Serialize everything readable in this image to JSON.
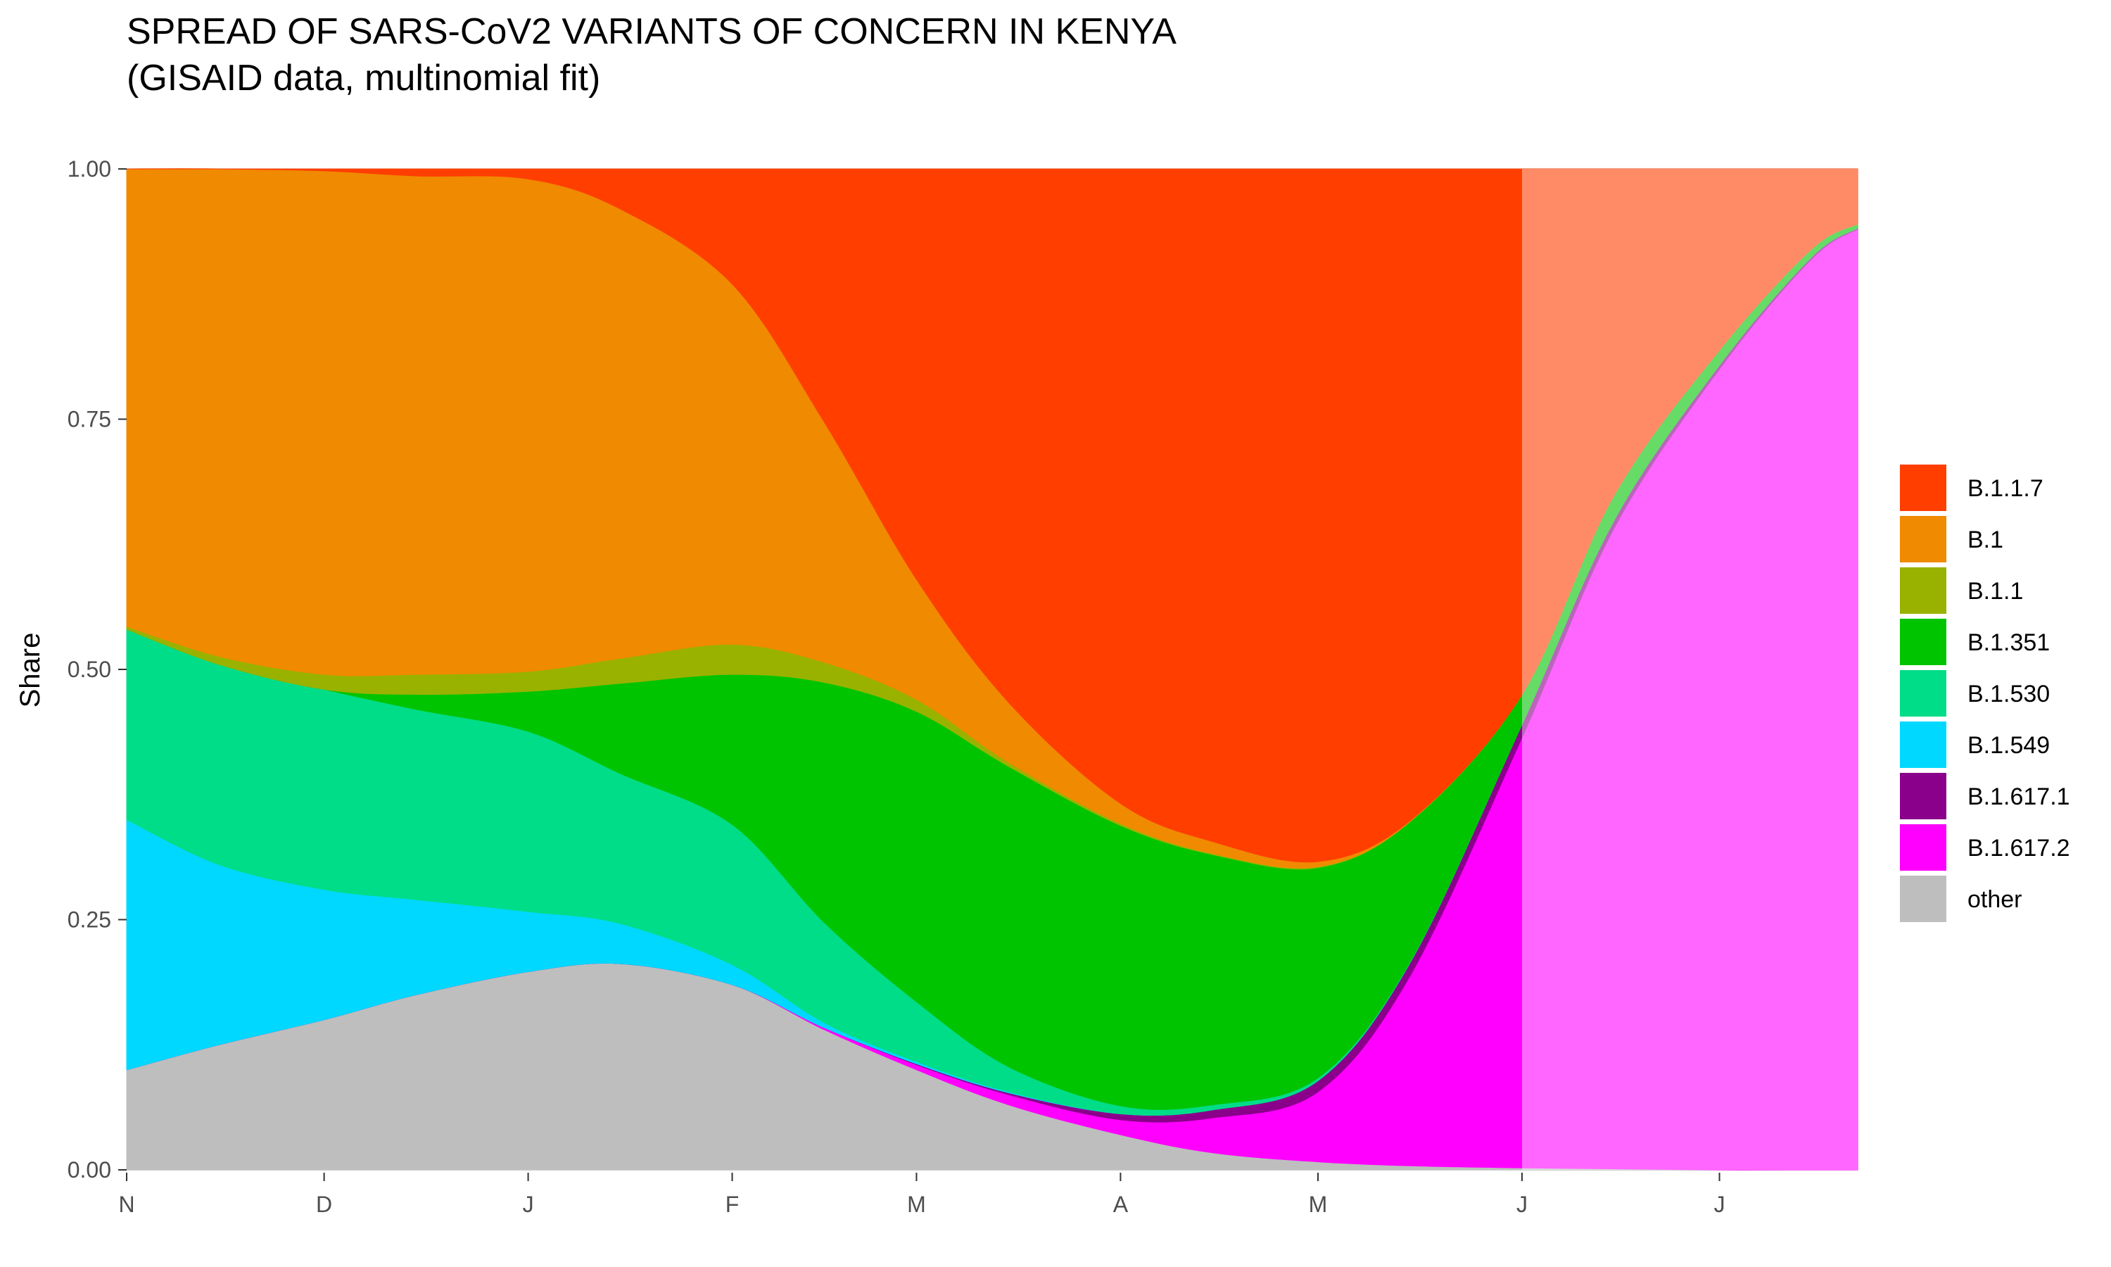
{
  "chart_data": {
    "type": "area",
    "title": "SPREAD OF SARS-CoV2 VARIANTS OF CONCERN IN KENYA",
    "subtitle": "(GISAID data, multinomial fit)",
    "xlabel": "",
    "ylabel": "Share",
    "ylim": [
      0,
      1
    ],
    "yticks": [
      "0.00",
      "0.25",
      "0.50",
      "0.75",
      "1.00"
    ],
    "xlim": [
      "2020-11-01",
      "2021-07-22"
    ],
    "xticks": [
      {
        "date": "2020-11-01",
        "label": "N"
      },
      {
        "date": "2020-12-01",
        "label": "D"
      },
      {
        "date": "2021-01-01",
        "label": "J"
      },
      {
        "date": "2021-02-01",
        "label": "F"
      },
      {
        "date": "2021-03-01",
        "label": "M"
      },
      {
        "date": "2021-04-01",
        "label": "A"
      },
      {
        "date": "2021-05-01",
        "label": "M"
      },
      {
        "date": "2021-06-01",
        "label": "J"
      },
      {
        "date": "2021-07-01",
        "label": "J"
      }
    ],
    "projection_start": "2021-06-01",
    "stacking_order_bottom_to_top": [
      "other",
      "B.1.617.2",
      "B.1.617.1",
      "B.1.549",
      "B.1.530",
      "B.1.351",
      "B.1.1",
      "B.1",
      "B.1.1.7"
    ],
    "x": [
      "2020-11-01",
      "2020-11-15",
      "2020-12-01",
      "2020-12-15",
      "2021-01-01",
      "2021-01-15",
      "2021-02-01",
      "2021-02-15",
      "2021-03-01",
      "2021-03-15",
      "2021-04-01",
      "2021-04-15",
      "2021-05-01",
      "2021-05-15",
      "2021-06-01",
      "2021-06-15",
      "2021-07-01",
      "2021-07-15",
      "2021-07-22"
    ],
    "series": [
      {
        "name": "other",
        "color": "#bebebe",
        "values": [
          0.1,
          0.125,
          0.15,
          0.175,
          0.198,
          0.206,
          0.185,
          0.14,
          0.1,
          0.065,
          0.035,
          0.017,
          0.008,
          0.004,
          0.002,
          0.001,
          0.0,
          0.0,
          0.0
        ]
      },
      {
        "name": "B.1.617.2",
        "color": "#ff00ff",
        "values": [
          0.0,
          0.0,
          0.0,
          0.0,
          0.0,
          0.0,
          0.0,
          0.002,
          0.005,
          0.01,
          0.015,
          0.035,
          0.07,
          0.19,
          0.43,
          0.64,
          0.8,
          0.91,
          0.94
        ]
      },
      {
        "name": "B.1.617.1",
        "color": "#8b008b",
        "values": [
          0.0,
          0.0,
          0.0,
          0.0,
          0.0,
          0.0,
          0.0,
          0.0,
          0.001,
          0.002,
          0.006,
          0.008,
          0.011,
          0.013,
          0.013,
          0.008,
          0.004,
          0.002,
          0.001
        ]
      },
      {
        "name": "B.1.549",
        "color": "#00d8ff",
        "values": [
          0.25,
          0.18,
          0.13,
          0.095,
          0.06,
          0.04,
          0.02,
          0.005,
          0.002,
          0.001,
          0.0,
          0.0,
          0.0,
          0.0,
          0.0,
          0.0,
          0.0,
          0.0,
          0.0
        ]
      },
      {
        "name": "B.1.530",
        "color": "#00dd88",
        "values": [
          0.19,
          0.2,
          0.2,
          0.19,
          0.18,
          0.15,
          0.14,
          0.1,
          0.06,
          0.025,
          0.008,
          0.005,
          0.003,
          0.001,
          0.0,
          0.0,
          0.0,
          0.0,
          0.0
        ]
      },
      {
        "name": "B.1.351",
        "color": "#00c400",
        "values": [
          0.0,
          0.0,
          0.0,
          0.015,
          0.04,
          0.09,
          0.15,
          0.24,
          0.29,
          0.3,
          0.28,
          0.25,
          0.21,
          0.14,
          0.03,
          0.025,
          0.015,
          0.008,
          0.004
        ]
      },
      {
        "name": "B.1.1",
        "color": "#99b200",
        "values": [
          0.003,
          0.008,
          0.015,
          0.02,
          0.02,
          0.025,
          0.03,
          0.02,
          0.012,
          0.004,
          0.002,
          0.001,
          0.001,
          0.0,
          0.0,
          0.0,
          0.0,
          0.0,
          0.0
        ]
      },
      {
        "name": "B.1",
        "color": "#f08a00",
        "values": [
          0.457,
          0.487,
          0.503,
          0.498,
          0.492,
          0.449,
          0.36,
          0.24,
          0.12,
          0.06,
          0.02,
          0.012,
          0.005,
          0.001,
          0.0,
          0.0,
          0.0,
          0.0,
          0.0
        ]
      },
      {
        "name": "B.1.1.7",
        "color": "#ff3e00",
        "values": [
          0.0,
          0.0,
          0.002,
          0.007,
          0.01,
          0.04,
          0.115,
          0.253,
          0.41,
          0.533,
          0.634,
          0.672,
          0.692,
          0.651,
          0.525,
          0.326,
          0.181,
          0.08,
          0.055
        ]
      }
    ],
    "legend": {
      "position": "right",
      "entries": [
        {
          "label": "B.1.1.7",
          "color": "#ff3e00"
        },
        {
          "label": "B.1",
          "color": "#f08a00"
        },
        {
          "label": "B.1.1",
          "color": "#99b200"
        },
        {
          "label": "B.1.351",
          "color": "#00c400"
        },
        {
          "label": "B.1.530",
          "color": "#00dd88"
        },
        {
          "label": "B.1.549",
          "color": "#00d8ff"
        },
        {
          "label": "B.1.617.1",
          "color": "#8b008b"
        },
        {
          "label": "B.1.617.2",
          "color": "#ff00ff"
        },
        {
          "label": "other",
          "color": "#bebebe"
        }
      ]
    },
    "grid": true
  }
}
